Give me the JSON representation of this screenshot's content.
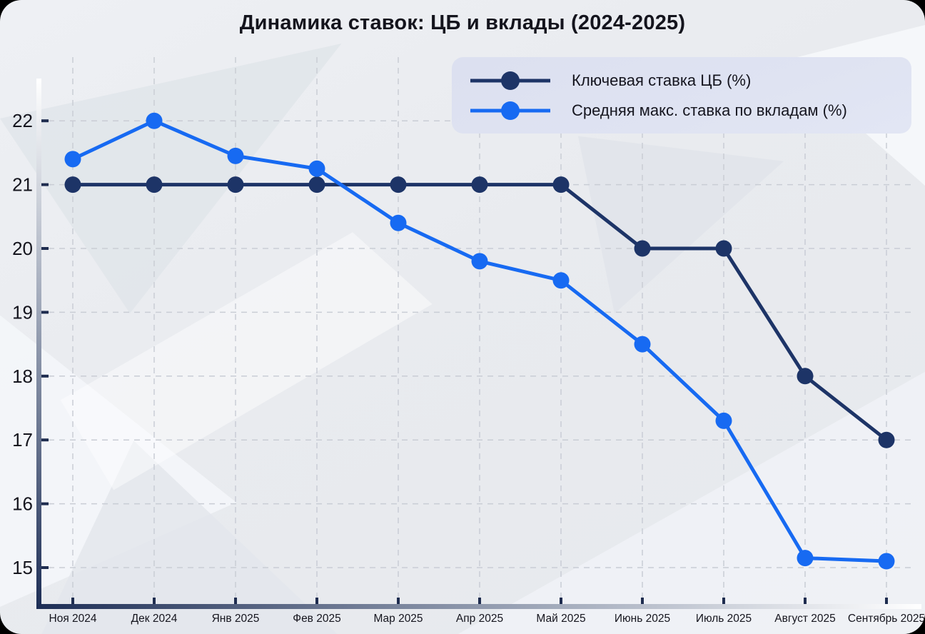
{
  "title": "Динамика ставок: ЦБ и вклады (2024-2025)",
  "legend": {
    "items": [
      {
        "label": "Ключевая ставка ЦБ (%)"
      },
      {
        "label": "Средняя макс. ставка по вкладам (%)"
      }
    ]
  },
  "colors": {
    "key_rate_line": "#1d3467",
    "deposit_rate_line": "#176af2",
    "grid": "#c9cdd5",
    "axis_dark": "#1e2c4f",
    "text_dark": "#15151e"
  },
  "chart_data": {
    "type": "line",
    "title": "Динамика ставок: ЦБ и вклады (2024-2025)",
    "xlabel": "",
    "ylabel": "",
    "categories": [
      "Ноя 2024",
      "Дек 2024",
      "Янв 2025",
      "Фев 2025",
      "Мар 2025",
      "Апр 2025",
      "Май 2025",
      "Июнь 2025",
      "Июль 2025",
      "Август 2025",
      "Сентябрь 2025"
    ],
    "series": [
      {
        "name": "Ключевая ставка ЦБ (%)",
        "color": "#1d3467",
        "values": [
          21,
          21,
          21,
          21,
          21,
          21,
          21,
          20,
          20,
          18,
          17
        ]
      },
      {
        "name": "Средняя макс. ставка по вкладам (%)",
        "color": "#176af2",
        "values": [
          21.4,
          22.0,
          21.45,
          21.25,
          20.4,
          19.8,
          19.5,
          18.5,
          17.3,
          15.15,
          15.1
        ]
      }
    ],
    "y_ticks": [
      15,
      16,
      17,
      18,
      19,
      20,
      21,
      22
    ],
    "ylim": [
      14.4,
      22.7
    ],
    "grid": true,
    "legend_position": "upper right"
  }
}
